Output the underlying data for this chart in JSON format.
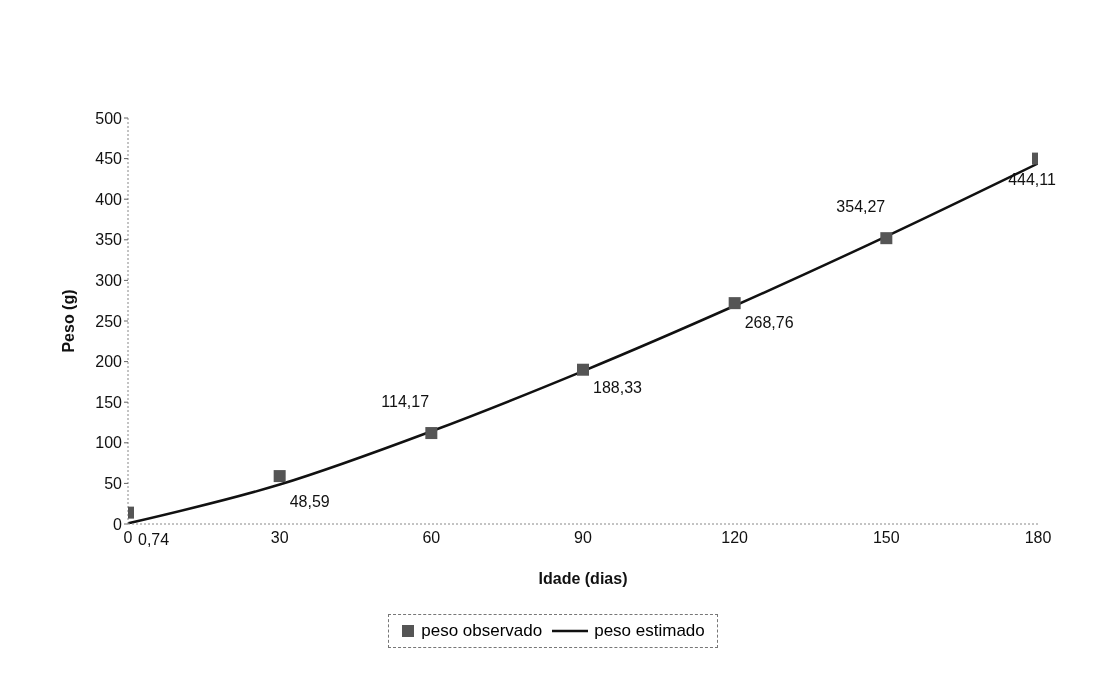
{
  "chart_data": {
    "type": "line",
    "xlabel": "Idade (dias)",
    "ylabel": "Peso (g)",
    "x": [
      0,
      30,
      60,
      90,
      120,
      150,
      180
    ],
    "series": [
      {
        "name": "peso observado",
        "type": "scatter",
        "marker": "square",
        "color": "#555555",
        "values": [
          14,
          59,
          112,
          190,
          272,
          352,
          450
        ]
      },
      {
        "name": "peso estimado",
        "marker": "none",
        "color": "#111111",
        "values": [
          0.74,
          48.59,
          114.17,
          188.33,
          268.76,
          354.27,
          444.11
        ],
        "value_labels": [
          "0,74",
          "48,59",
          "114,17",
          "188,33",
          "268,76",
          "354,27",
          "444,11"
        ]
      }
    ],
    "xlim": [
      0,
      180
    ],
    "xticks": [
      0,
      30,
      60,
      90,
      120,
      150,
      180
    ],
    "ylim": [
      0,
      500
    ],
    "yticks": [
      0,
      50,
      100,
      150,
      200,
      250,
      300,
      350,
      400,
      450,
      500
    ],
    "grid": false,
    "legend": "bottom"
  }
}
